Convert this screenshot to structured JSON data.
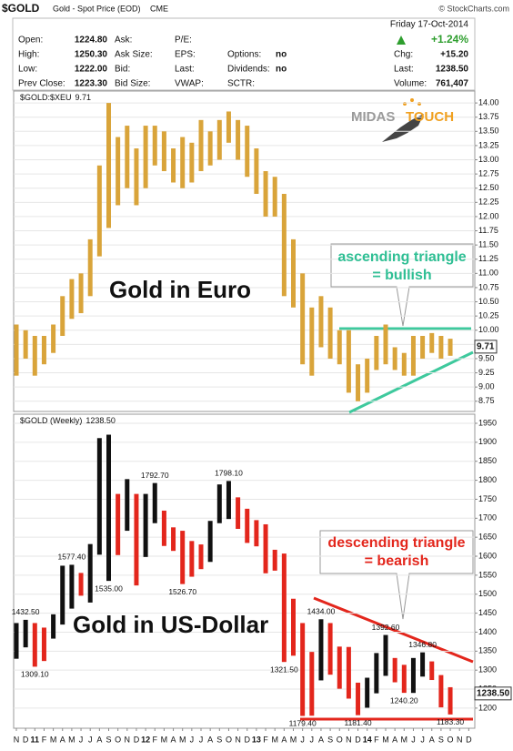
{
  "header": {
    "symbol": "$GOLD",
    "name": "Gold - Spot Price (EOD)",
    "exchange": "CME",
    "source": "© StockCharts.com",
    "date": "Friday  17-Oct-2014",
    "change_pct": "+1.24%"
  },
  "quote": {
    "rows": [
      [
        {
          "label": "Open:",
          "value": "1224.80"
        },
        {
          "label": "Ask:"
        },
        {
          "label": "P/E:"
        }
      ],
      [
        {
          "label": "High:",
          "value": "1250.30"
        },
        {
          "label": "Ask Size:"
        },
        {
          "label": "EPS:"
        },
        {
          "label": "Options:",
          "value": "no"
        }
      ],
      [
        {
          "label": "Low:",
          "value": "1222.00"
        },
        {
          "label": "Bid:"
        },
        {
          "label": "Last:"
        },
        {
          "label": "Dividends:",
          "value": "no"
        }
      ],
      [
        {
          "label": "Prev Close:",
          "value": "1223.30"
        },
        {
          "label": "Bid Size:"
        },
        {
          "label": "VWAP:"
        },
        {
          "label": "SCTR:"
        }
      ]
    ],
    "right": [
      {
        "label": "Chg:",
        "value": "+15.20"
      },
      {
        "label": "Last:",
        "value": "1238.50"
      },
      {
        "label": "Volume:",
        "value": "761,407"
      }
    ]
  },
  "chart_data": [
    {
      "type": "hilo",
      "title": "$GOLD:$XEU",
      "last": 9.71,
      "color": "#d9a43a",
      "big_text": "Gold in Euro",
      "callout": [
        "ascending triangle",
        "= bullish"
      ],
      "callout_color": "#2fbf94",
      "logo": [
        "MIDAS",
        "TOUCH"
      ],
      "ylim": [
        8.57,
        14.21
      ],
      "yticks": [
        {
          "value": 14,
          "label": "14.00"
        },
        13.75,
        {
          "value": 13.5,
          "label": "13.50"
        },
        13.25,
        {
          "value": 13,
          "label": "13.00"
        },
        12.75,
        {
          "value": 12.5,
          "label": "12.50"
        },
        12.25,
        {
          "value": 12,
          "label": "12.00"
        },
        11.75,
        {
          "value": 11.5,
          "label": "11.50"
        },
        11.25,
        {
          "value": 11,
          "label": "11.00"
        },
        10.75,
        {
          "value": 10.5,
          "label": "10.50"
        },
        10.25,
        {
          "value": 10,
          "label": "10.00"
        },
        9.75,
        {
          "value": 9.5,
          "label": "9.50"
        },
        9.25,
        {
          "value": 9,
          "label": "9.00"
        },
        8.75
      ],
      "grid": true,
      "high": [
        10.1,
        10.0,
        9.9,
        9.9,
        10.1,
        10.6,
        10.9,
        11.0,
        11.6,
        12.9,
        14.0,
        13.4,
        13.6,
        13.2,
        13.6,
        13.6,
        13.5,
        13.2,
        13.4,
        13.3,
        13.7,
        13.5,
        13.7,
        13.85,
        13.7,
        13.6,
        13.2,
        12.8,
        12.7,
        12.4,
        11.6,
        11.0,
        10.4,
        10.6,
        10.4,
        10.0,
        10.0,
        9.4,
        9.5,
        9.9,
        10.1,
        9.7,
        9.6,
        9.9,
        9.9,
        9.95,
        9.9,
        9.85,
        null,
        null
      ],
      "low": [
        9.2,
        9.5,
        9.2,
        9.4,
        9.6,
        9.9,
        10.2,
        10.3,
        10.6,
        11.3,
        11.8,
        12.2,
        12.5,
        12.2,
        12.5,
        12.9,
        12.8,
        12.6,
        12.5,
        12.6,
        12.8,
        12.9,
        13.0,
        13.3,
        13.0,
        12.7,
        12.4,
        12.0,
        12.0,
        10.6,
        10.4,
        9.4,
        9.2,
        9.7,
        9.5,
        9.4,
        8.9,
        8.75,
        8.9,
        9.3,
        9.4,
        9.3,
        9.2,
        9.2,
        9.5,
        9.6,
        9.5,
        9.55,
        null,
        null
      ]
    },
    {
      "type": "hilo",
      "title": "$GOLD (Weekly)",
      "last": {
        "value": 1238.5,
        "label": "1238.50"
      },
      "colors": [
        "#111111",
        "#e3261c"
      ],
      "big_text": "Gold in US-Dollar",
      "callout": [
        "descending triangle",
        "= bearish"
      ],
      "callout_color": "#e3261c",
      "ylim": [
        1147,
        1974
      ],
      "yticks": [
        1950,
        1900,
        1850,
        1800,
        1750,
        1700,
        1650,
        1600,
        1550,
        1500,
        1450,
        1400,
        1350,
        1300,
        1250,
        1200
      ],
      "grid": true,
      "categories": [
        "N",
        "D",
        "11",
        "F",
        "M",
        "A",
        "M",
        "J",
        "J",
        "A",
        "S",
        "O",
        "N",
        "D",
        "12",
        "F",
        "M",
        "A",
        "M",
        "J",
        "J",
        "A",
        "S",
        "O",
        "N",
        "D",
        "13",
        "F",
        "M",
        "A",
        "M",
        "J",
        "J",
        "A",
        "S",
        "O",
        "N",
        "D",
        "14",
        "F",
        "M",
        "A",
        "M",
        "J",
        "J",
        "A",
        "S",
        "O",
        "N",
        "D"
      ],
      "high": [
        1424,
        1432.5,
        1424,
        1412,
        1447,
        1575,
        1577.4,
        1556,
        1632,
        1911,
        1920,
        1764,
        1803,
        1764,
        1764,
        1792.7,
        1720,
        1676,
        1667,
        1640,
        1631,
        1693,
        1789,
        1798.1,
        1755,
        1725,
        1695,
        1684,
        1617,
        1607,
        1488,
        1424,
        1348,
        1434,
        1424,
        1362,
        1361,
        1267,
        1280,
        1345,
        1392.6,
        1332,
        1314,
        1332,
        1346.8,
        1323,
        1287,
        1255,
        null,
        null
      ],
      "low": [
        1330,
        1360,
        1309.1,
        1324,
        1383,
        1420,
        1462,
        1496,
        1478,
        1604,
        1535,
        1603,
        1667,
        1523,
        1598,
        1687,
        1627,
        1614,
        1526.7,
        1546,
        1566,
        1585,
        1687,
        1698,
        1672,
        1635,
        1626,
        1555,
        1562,
        1321.5,
        1338,
        1179.4,
        1180,
        1273,
        1288,
        1251,
        1225,
        1181.4,
        1201,
        1239,
        1285,
        1268,
        1240.2,
        1240,
        1283,
        1274,
        1202,
        1183.3,
        null,
        null
      ],
      "annotations": [
        {
          "value": 1432.5,
          "label": "1432.50"
        },
        {
          "value": 1309.1,
          "label": "1309.10"
        },
        {
          "value": 1577.4,
          "label": "1577.40"
        },
        {
          "value": 1535,
          "label": "1535.00"
        },
        {
          "value": 1792.7,
          "label": "1792.70"
        },
        {
          "value": 1526.7,
          "label": "1526.70"
        },
        {
          "value": 1798.1,
          "label": "1798.10"
        },
        {
          "value": 1321.5,
          "label": "1321.50"
        },
        {
          "value": 1179.4,
          "label": "1179.40"
        },
        {
          "value": 1434,
          "label": "1434.00"
        },
        {
          "value": 1181.4,
          "label": "1181.40"
        },
        {
          "value": 1392.6,
          "label": "1392.60"
        },
        {
          "value": 1240.2,
          "label": "1240.20"
        },
        {
          "value": 1346.8,
          "label": "1346.80"
        },
        {
          "value": 1183.3,
          "label": "1183.30"
        }
      ]
    }
  ]
}
